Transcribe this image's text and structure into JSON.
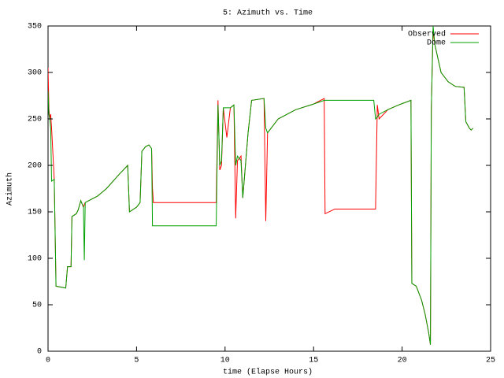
{
  "chart_data": {
    "type": "line",
    "title": "5: Azimuth vs. Time",
    "xlabel": "time (Elapse Hours)",
    "ylabel": "Azimuth",
    "x": [
      0,
      0.05,
      0.1,
      0.15,
      0.2,
      0.35,
      0.4,
      0.45,
      1.0,
      1.1,
      1.3,
      1.35,
      1.6,
      1.7,
      1.85,
      2.0,
      2.05,
      2.1,
      2.8,
      3.3,
      4.0,
      4.5,
      4.6,
      5.0,
      5.2,
      5.3,
      5.5,
      5.7,
      5.85,
      5.9,
      5.95,
      9.5,
      9.6,
      9.7,
      9.8,
      9.9,
      10.1,
      10.3,
      10.5,
      10.6,
      10.7,
      10.9,
      11.0,
      11.3,
      11.5,
      12.2,
      12.3,
      12.4,
      13,
      14,
      15,
      15.6,
      15.65,
      16.2,
      18.4,
      18.5,
      18.6,
      18.7,
      19.2,
      19.8,
      20.5,
      20.55,
      20.8,
      21.1,
      21.3,
      21.5,
      21.6,
      21.65,
      21.75,
      21.85,
      22.2,
      22.6,
      23.0,
      23.5,
      23.6,
      23.8,
      23.9,
      24.0
    ],
    "series": [
      {
        "name": "Observed",
        "color": "#ff0000",
        "values": [
          305,
          260,
          250,
          255,
          240,
          185,
          128,
          70,
          68,
          91,
          91,
          145,
          148,
          152,
          162,
          155,
          158,
          160,
          167,
          175,
          190,
          200,
          150,
          155,
          160,
          215,
          220,
          222,
          218,
          175,
          160,
          160,
          270,
          195,
          200,
          262,
          230,
          262,
          265,
          143,
          205,
          210,
          165,
          235,
          270,
          272,
          140,
          235,
          250,
          260,
          266,
          272,
          148,
          153,
          153,
          153,
          265,
          250,
          260,
          265,
          270,
          73,
          70,
          55,
          40,
          20,
          7,
          260,
          345,
          330,
          300,
          290,
          285,
          284,
          247,
          240,
          238,
          240
        ]
      },
      {
        "name": "Dome",
        "color": "#00a000",
        "values": [
          280,
          255,
          250,
          240,
          183,
          185,
          128,
          70,
          68,
          91,
          91,
          145,
          148,
          152,
          162,
          155,
          98,
          160,
          167,
          175,
          190,
          200,
          150,
          155,
          160,
          215,
          220,
          222,
          218,
          135,
          135,
          135,
          265,
          200,
          205,
          262,
          262,
          262,
          265,
          200,
          210,
          205,
          165,
          235,
          270,
          272,
          240,
          235,
          250,
          260,
          266,
          270,
          270,
          270,
          270,
          250,
          252,
          255,
          260,
          265,
          270,
          73,
          70,
          55,
          40,
          20,
          7,
          260,
          350,
          330,
          300,
          290,
          285,
          284,
          247,
          240,
          238,
          240
        ]
      }
    ],
    "xlim": [
      0,
      25
    ],
    "xticks": [
      0,
      5,
      10,
      15,
      20,
      25
    ],
    "ylim": [
      0,
      350
    ],
    "yticks": [
      0,
      50,
      100,
      150,
      200,
      250,
      300,
      350
    ],
    "legend": "top-right"
  }
}
